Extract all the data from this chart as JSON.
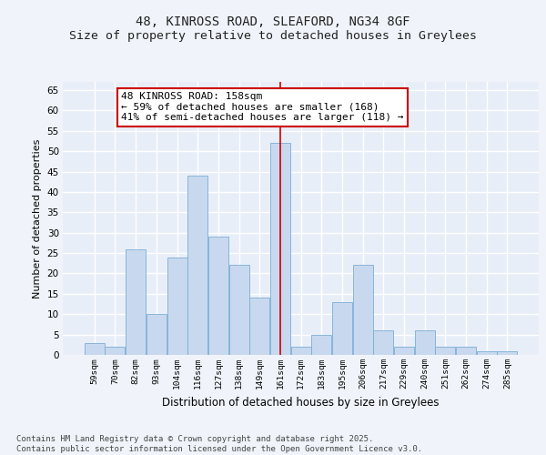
{
  "title1": "48, KINROSS ROAD, SLEAFORD, NG34 8GF",
  "title2": "Size of property relative to detached houses in Greylees",
  "xlabel": "Distribution of detached houses by size in Greylees",
  "ylabel": "Number of detached properties",
  "categories": [
    "59sqm",
    "70sqm",
    "82sqm",
    "93sqm",
    "104sqm",
    "116sqm",
    "127sqm",
    "138sqm",
    "149sqm",
    "161sqm",
    "172sqm",
    "183sqm",
    "195sqm",
    "206sqm",
    "217sqm",
    "229sqm",
    "240sqm",
    "251sqm",
    "262sqm",
    "274sqm",
    "285sqm"
  ],
  "values": [
    3,
    2,
    26,
    10,
    24,
    44,
    29,
    22,
    14,
    52,
    2,
    5,
    13,
    22,
    6,
    2,
    6,
    2,
    2,
    1,
    1
  ],
  "bar_color": "#c8d9ef",
  "bar_edge_color": "#7aadd4",
  "vline_color": "#cc0000",
  "annotation_text": "48 KINROSS ROAD: 158sqm\n← 59% of detached houses are smaller (168)\n41% of semi-detached houses are larger (118) →",
  "annotation_box_color": "#ffffff",
  "annotation_box_edge": "#cc0000",
  "ylim": [
    0,
    67
  ],
  "yticks": [
    0,
    5,
    10,
    15,
    20,
    25,
    30,
    35,
    40,
    45,
    50,
    55,
    60,
    65
  ],
  "background_color": "#e8eef8",
  "fig_background": "#f0f4fa",
  "grid_color": "#ffffff",
  "footer": "Contains HM Land Registry data © Crown copyright and database right 2025.\nContains public sector information licensed under the Open Government Licence v3.0.",
  "title_fontsize": 10,
  "subtitle_fontsize": 9.5,
  "annotation_fontsize": 8,
  "footer_fontsize": 6.5,
  "ylabel_fontsize": 8,
  "xlabel_fontsize": 8.5
}
